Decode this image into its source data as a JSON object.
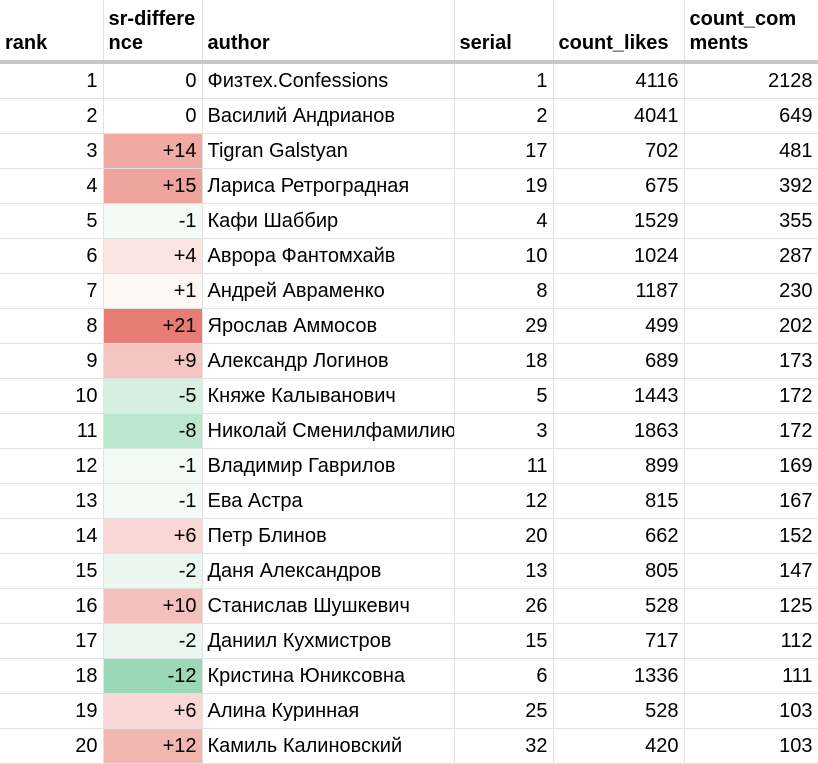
{
  "headers": {
    "rank": "rank",
    "diff": "sr-difference",
    "author": "author",
    "serial": "serial",
    "likes": "count_likes",
    "comments": "count_comments"
  },
  "rows": [
    {
      "rank": "1",
      "diff": "0",
      "diff_color": "#ffffff",
      "author": "Физтех.Confessions",
      "serial": "1",
      "likes": "4116",
      "comments": "2128"
    },
    {
      "rank": "2",
      "diff": "0",
      "diff_color": "#ffffff",
      "author": "Василий Андрианов",
      "serial": "2",
      "likes": "4041",
      "comments": "649"
    },
    {
      "rank": "3",
      "diff": "+14",
      "diff_color": "#f0a9a3",
      "author": "Tigran Galstyan",
      "serial": "17",
      "likes": "702",
      "comments": "481"
    },
    {
      "rank": "4",
      "diff": "+15",
      "diff_color": "#ef a39d",
      "author": "Лариса Ретроградная",
      "serial": "19",
      "likes": "675",
      "comments": "392"
    },
    {
      "rank": "5",
      "diff": "-1",
      "diff_color": "#f4faf6",
      "author": "Кафи Шаббир",
      "serial": "4",
      "likes": "1529",
      "comments": "355"
    },
    {
      "rank": "6",
      "diff": "+4",
      "diff_color": "#fbe3e1",
      "author": "Аврора Фантомхайв",
      "serial": "10",
      "likes": "1024",
      "comments": "287"
    },
    {
      "rank": "7",
      "diff": "+1",
      "diff_color": "#fef7f6",
      "author": "Андрей Авраменко",
      "serial": "8",
      "likes": "1187",
      "comments": "230"
    },
    {
      "rank": "8",
      "diff": "+21",
      "diff_color": "#e67c73",
      "author": "Ярослав Аммосов",
      "serial": "29",
      "likes": "499",
      "comments": "202"
    },
    {
      "rank": "9",
      "diff": "+9",
      "diff_color": "#f5c5c1",
      "author": "Александр Логинов",
      "serial": "18",
      "likes": "689",
      "comments": "173"
    },
    {
      "rank": "10",
      "diff": "-5",
      "diff_color": "#d5efe0",
      "author": "Княже Калыванович",
      "serial": "5",
      "likes": "1443",
      "comments": "172"
    },
    {
      "rank": "11",
      "diff": "-8",
      "diff_color": "#bde6cf",
      "author": "Николай Сменилфамилию",
      "serial": "3",
      "likes": "1863",
      "comments": "172"
    },
    {
      "rank": "12",
      "diff": "-1",
      "diff_color": "#f4faf6",
      "author": "Владимир Гаврилов",
      "serial": "11",
      "likes": "899",
      "comments": "169"
    },
    {
      "rank": "13",
      "diff": "-1",
      "diff_color": "#f4faf6",
      "author": "Ева Астра",
      "serial": "12",
      "likes": "815",
      "comments": "167"
    },
    {
      "rank": "14",
      "diff": "+6",
      "diff_color": "#f9d7d4",
      "author": "Петр Блинов",
      "serial": "20",
      "likes": "662",
      "comments": "152"
    },
    {
      "rank": "15",
      "diff": "-2",
      "diff_color": "#eaf6ef",
      "author": "Даня Александров",
      "serial": "13",
      "likes": "805",
      "comments": "147"
    },
    {
      "rank": "16",
      "diff": "+10",
      "diff_color": "#f4c0bc",
      "author": "Станислав Шушкевич",
      "serial": "26",
      "likes": "528",
      "comments": "125"
    },
    {
      "rank": "17",
      "diff": "-2",
      "diff_color": "#eaf6ef",
      "author": "Даниил Кухмистров",
      "serial": "15",
      "likes": "717",
      "comments": "112"
    },
    {
      "rank": "18",
      "diff": "-12",
      "diff_color": "#9bd8b6",
      "author": "Кристина Юниксовна",
      "serial": "6",
      "likes": "1336",
      "comments": "111"
    },
    {
      "rank": "19",
      "diff": "+6",
      "diff_color": "#f9d7d4",
      "author": "Алина Куринная",
      "serial": "25",
      "likes": "528",
      "comments": "103"
    },
    {
      "rank": "20",
      "diff": "+12",
      "diff_color": "#f2b6b1",
      "author": "Камиль Калиновский",
      "serial": "32",
      "likes": "420",
      "comments": "103"
    }
  ]
}
